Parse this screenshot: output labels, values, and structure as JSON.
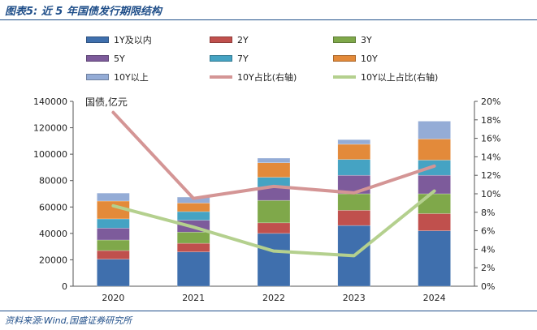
{
  "title": "图表5:  近 5 年国债发行期限结构",
  "source": "资料来源:Wind,国盛证券研究所",
  "unit_label": "国债,亿元",
  "chart_data": {
    "type": "bar",
    "stacked": true,
    "categories": [
      "2020",
      "2021",
      "2022",
      "2023",
      "2024"
    ],
    "ylim": [
      0,
      140000
    ],
    "y_ticks": [
      "0",
      "20000",
      "40000",
      "60000",
      "80000",
      "100000",
      "120000",
      "140000"
    ],
    "y2lim": [
      0,
      20
    ],
    "y2_ticks": [
      "0%",
      "2%",
      "4%",
      "6%",
      "8%",
      "10%",
      "12%",
      "14%",
      "16%",
      "18%",
      "20%"
    ],
    "series": [
      {
        "name": "1Y及以内",
        "color": "#3f6fad",
        "values": [
          20500,
          26000,
          40000,
          46000,
          42000
        ]
      },
      {
        "name": "2Y",
        "color": "#c0504d",
        "values": [
          6500,
          6500,
          8000,
          11500,
          13000
        ]
      },
      {
        "name": "3Y",
        "color": "#7fa84a",
        "values": [
          8000,
          8500,
          17000,
          12500,
          15000
        ]
      },
      {
        "name": "5Y",
        "color": "#7d5b9b",
        "values": [
          9000,
          9000,
          10000,
          14000,
          14000
        ]
      },
      {
        "name": "7Y",
        "color": "#45a3c3",
        "values": [
          7000,
          6500,
          7500,
          12000,
          11500
        ]
      },
      {
        "name": "10Y",
        "color": "#e38a3a",
        "values": [
          13500,
          6500,
          11000,
          11500,
          16000
        ]
      },
      {
        "name": "10Y以上",
        "color": "#94acd6",
        "values": [
          6000,
          4500,
          3500,
          3500,
          13500
        ]
      }
    ],
    "lines": [
      {
        "name": "10Y占比(右轴)",
        "color": "#d49595",
        "axis": "right",
        "values": [
          18.8,
          9.5,
          10.8,
          10.1,
          13.0
        ]
      },
      {
        "name": "10Y以上占比(右轴)",
        "color": "#b4d08e",
        "axis": "right",
        "values": [
          8.7,
          6.4,
          3.8,
          3.3,
          10.3
        ]
      }
    ]
  }
}
